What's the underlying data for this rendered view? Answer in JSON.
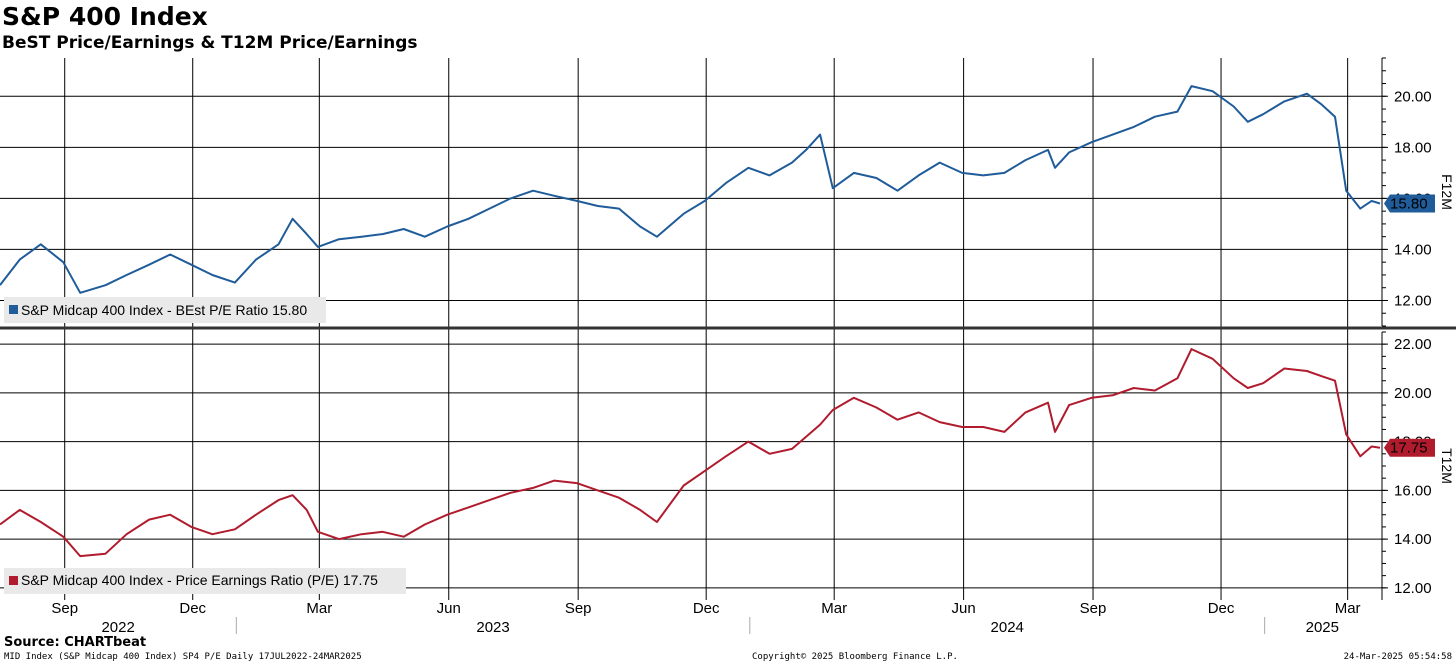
{
  "title": "S&P 400 Index",
  "subtitle": "BeST Price/Earnings & T12M Price/Earnings",
  "source": "Source: CHARTbeat",
  "footer": {
    "left": "MID Index (S&P Midcap 400 Index) SP4 P/E  Daily 17JUL2022-24MAR2025",
    "center": "Copyright© 2025 Bloomberg Finance L.P.",
    "right": "24-Mar-2025 05:54:58"
  },
  "colors": {
    "blue": "#1f5c99",
    "red": "#b01c2e",
    "grid": "#000000",
    "legend_bg": "#e9e9e9"
  },
  "chart_data": [
    {
      "type": "line",
      "title": "",
      "ylabel": "F12M",
      "ylim": [
        11.0,
        21.5
      ],
      "yticks": [
        "12.00",
        "14.00",
        "16.00",
        "18.00",
        "20.00"
      ],
      "series": [
        {
          "name": "S&P Midcap 400 Index - BEst P/E Ratio 15.80",
          "last_value_label": "15.80",
          "x": [
            "2022-07-17",
            "2022-07-31",
            "2022-08-15",
            "2022-08-31",
            "2022-09-12",
            "2022-09-30",
            "2022-10-15",
            "2022-10-31",
            "2022-11-15",
            "2022-11-30",
            "2022-12-15",
            "2022-12-31",
            "2023-01-15",
            "2023-01-31",
            "2023-02-10",
            "2023-02-20",
            "2023-02-28",
            "2023-03-15",
            "2023-03-31",
            "2023-04-15",
            "2023-04-30",
            "2023-05-15",
            "2023-05-31",
            "2023-06-15",
            "2023-06-30",
            "2023-07-15",
            "2023-07-31",
            "2023-08-15",
            "2023-08-31",
            "2023-09-15",
            "2023-09-30",
            "2023-10-15",
            "2023-10-27",
            "2023-11-15",
            "2023-11-30",
            "2023-12-15",
            "2023-12-31",
            "2024-01-15",
            "2024-01-31",
            "2024-02-10",
            "2024-02-20",
            "2024-02-29",
            "2024-03-15",
            "2024-03-31",
            "2024-04-15",
            "2024-04-30",
            "2024-05-15",
            "2024-05-31",
            "2024-06-15",
            "2024-06-30",
            "2024-07-15",
            "2024-07-31",
            "2024-08-05",
            "2024-08-15",
            "2024-08-31",
            "2024-09-15",
            "2024-09-30",
            "2024-10-15",
            "2024-10-31",
            "2024-11-10",
            "2024-11-25",
            "2024-12-10",
            "2024-12-20",
            "2024-12-31",
            "2025-01-15",
            "2025-01-31",
            "2025-02-10",
            "2025-02-20",
            "2025-02-28",
            "2025-03-10",
            "2025-03-18",
            "2025-03-24"
          ],
          "values": [
            12.6,
            13.6,
            14.2,
            13.5,
            12.3,
            12.6,
            13.0,
            13.4,
            13.8,
            13.4,
            13.0,
            12.7,
            13.6,
            14.2,
            15.2,
            14.6,
            14.1,
            14.4,
            14.5,
            14.6,
            14.8,
            14.5,
            14.9,
            15.2,
            15.6,
            16.0,
            16.3,
            16.1,
            15.9,
            15.7,
            15.6,
            14.9,
            14.5,
            15.4,
            15.9,
            16.6,
            17.2,
            16.9,
            17.4,
            17.9,
            18.5,
            16.4,
            17.0,
            16.8,
            16.3,
            16.9,
            17.4,
            17.0,
            16.9,
            17.0,
            17.5,
            17.9,
            17.2,
            17.8,
            18.2,
            18.5,
            18.8,
            19.2,
            19.4,
            20.4,
            20.2,
            19.6,
            19.0,
            19.3,
            19.8,
            20.1,
            19.7,
            19.2,
            16.3,
            15.6,
            15.9,
            15.8
          ]
        }
      ]
    },
    {
      "type": "line",
      "title": "",
      "ylabel": "T12M",
      "ylim": [
        11.5,
        22.5
      ],
      "yticks": [
        "12.00",
        "14.00",
        "16.00",
        "18.00",
        "20.00",
        "22.00"
      ],
      "xticks": [
        "Sep",
        "Dec",
        "Mar",
        "Jun",
        "Sep",
        "Dec",
        "Mar",
        "Jun",
        "Sep",
        "Dec",
        "Mar"
      ],
      "years": [
        "2022",
        "2023",
        "2024",
        "2025"
      ],
      "series": [
        {
          "name": "S&P Midcap 400 Index - Price Earnings Ratio (P/E) 17.75",
          "last_value_label": "17.75",
          "x": [
            "2022-07-17",
            "2022-07-31",
            "2022-08-15",
            "2022-08-31",
            "2022-09-12",
            "2022-09-30",
            "2022-10-15",
            "2022-10-31",
            "2022-11-15",
            "2022-11-30",
            "2022-12-15",
            "2022-12-31",
            "2023-01-15",
            "2023-01-31",
            "2023-02-10",
            "2023-02-20",
            "2023-02-28",
            "2023-03-15",
            "2023-03-31",
            "2023-04-15",
            "2023-04-30",
            "2023-05-15",
            "2023-05-31",
            "2023-06-15",
            "2023-06-30",
            "2023-07-15",
            "2023-07-31",
            "2023-08-15",
            "2023-08-31",
            "2023-09-15",
            "2023-09-30",
            "2023-10-15",
            "2023-10-27",
            "2023-11-15",
            "2023-11-30",
            "2023-12-15",
            "2023-12-31",
            "2024-01-15",
            "2024-01-31",
            "2024-02-10",
            "2024-02-20",
            "2024-02-29",
            "2024-03-15",
            "2024-03-31",
            "2024-04-15",
            "2024-04-30",
            "2024-05-15",
            "2024-05-31",
            "2024-06-15",
            "2024-06-30",
            "2024-07-15",
            "2024-07-31",
            "2024-08-05",
            "2024-08-15",
            "2024-08-31",
            "2024-09-15",
            "2024-09-30",
            "2024-10-15",
            "2024-10-31",
            "2024-11-10",
            "2024-11-25",
            "2024-12-10",
            "2024-12-20",
            "2024-12-31",
            "2025-01-15",
            "2025-01-31",
            "2025-02-10",
            "2025-02-20",
            "2025-02-28",
            "2025-03-10",
            "2025-03-18",
            "2025-03-24"
          ],
          "values": [
            14.6,
            15.2,
            14.7,
            14.1,
            13.3,
            13.4,
            14.2,
            14.8,
            15.0,
            14.5,
            14.2,
            14.4,
            15.0,
            15.6,
            15.8,
            15.2,
            14.3,
            14.0,
            14.2,
            14.3,
            14.1,
            14.6,
            15.0,
            15.3,
            15.6,
            15.9,
            16.1,
            16.4,
            16.3,
            16.0,
            15.7,
            15.2,
            14.7,
            16.2,
            16.8,
            17.4,
            18.0,
            17.5,
            17.7,
            18.2,
            18.7,
            19.3,
            19.8,
            19.4,
            18.9,
            19.2,
            18.8,
            18.6,
            18.6,
            18.4,
            19.2,
            19.6,
            18.4,
            19.5,
            19.8,
            19.9,
            20.2,
            20.1,
            20.6,
            21.8,
            21.4,
            20.6,
            20.2,
            20.4,
            21.0,
            20.9,
            20.7,
            20.5,
            18.3,
            17.4,
            17.8,
            17.75
          ]
        }
      ]
    }
  ]
}
